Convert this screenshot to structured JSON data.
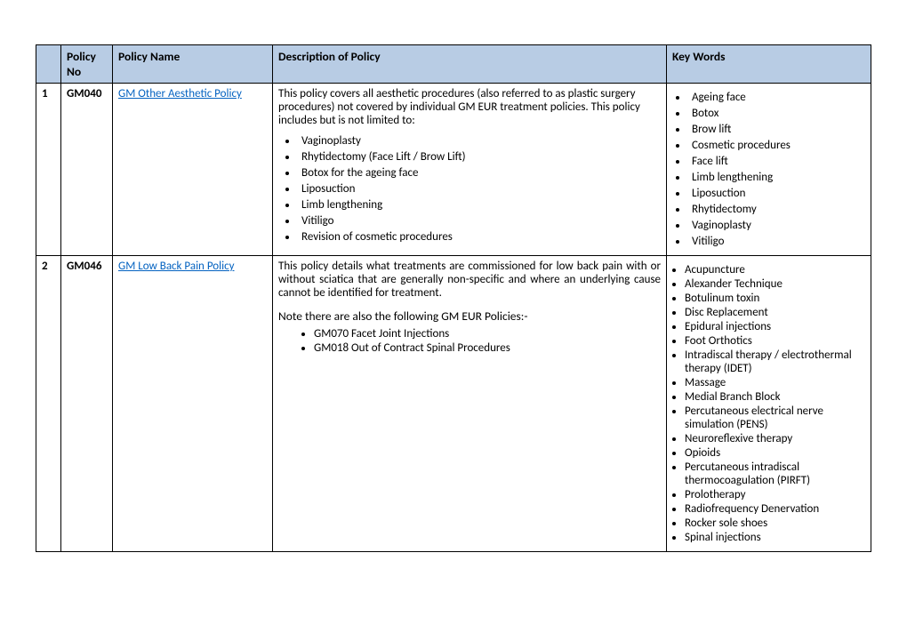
{
  "headers": {
    "idx": "",
    "policyNo": "Policy No",
    "policyName": "Policy Name",
    "description": "Description of Policy",
    "keywords": "Key Words"
  },
  "rows": [
    {
      "idx": "1",
      "policyNo": "GM040",
      "policyLink": "GM Other Aesthetic Policy",
      "descIntro": "This policy covers all aesthetic procedures (also referred to as plastic surgery procedures) not covered by individual GM EUR treatment policies.  This policy includes but is not limited to:",
      "descBullets": [
        "Vaginoplasty",
        "Rhytidectomy (Face Lift / Brow Lift)",
        "Botox for the ageing face",
        "Liposuction",
        "Limb lengthening",
        "Vitiligo",
        "Revision of cosmetic procedures"
      ],
      "keywords": [
        "Ageing face",
        "Botox",
        "Brow lift",
        "Cosmetic procedures",
        "Face lift",
        "Limb lengthening",
        "Liposuction",
        "Rhytidectomy",
        "Vaginoplasty",
        "Vitiligo"
      ]
    },
    {
      "idx": "2",
      "policyNo": "GM046",
      "policyLink": "GM Low Back Pain Policy",
      "descIntro": "This policy details what treatments are commissioned for low back pain with or without sciatica that are generally non-specific and where an underlying cause cannot be identified for treatment.",
      "noteHeading": "Note there are also the following GM EUR Policies:-",
      "noteBullets": [
        "GM070 Facet Joint Injections",
        "GM018 Out of Contract Spinal Procedures"
      ],
      "keywords": [
        "Acupuncture",
        "Alexander Technique",
        "Botulinum toxin",
        "Disc Replacement",
        "Epidural injections",
        "Foot Orthotics",
        "Intradiscal therapy / electrothermal therapy (IDET)",
        "Massage",
        "Medial Branch Block",
        "Percutaneous electrical nerve simulation (PENS)",
        "Neuroreflexive therapy",
        "Opioids",
        "Percutaneous intradiscal thermocoagulation (PIRFT)",
        "Prolotherapy",
        "Radiofrequency Denervation",
        "Rocker sole shoes",
        "Spinal injections"
      ]
    }
  ]
}
